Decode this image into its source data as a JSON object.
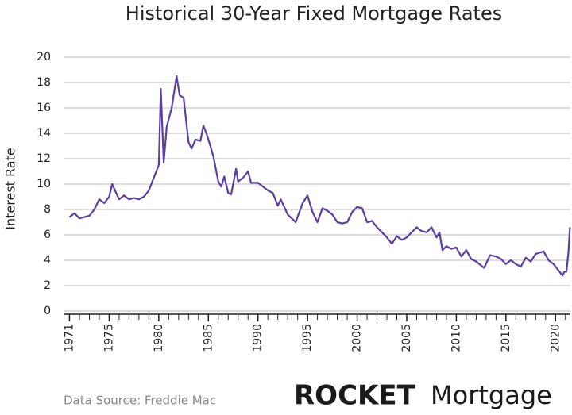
{
  "chart_data": {
    "type": "line",
    "title": "Historical 30-Year Fixed Mortgage Rates",
    "y_label": "Interest Rate",
    "source": "Data Source: Freddie Mac",
    "brand": "ROCKET",
    "brand_suffix": "Mortgage",
    "x": [
      1971,
      1971.5,
      1972,
      1972.5,
      1973,
      1973.5,
      1974,
      1974.5,
      1975,
      1975.3,
      1975.7,
      1976,
      1976.5,
      1977,
      1977.5,
      1978,
      1978.5,
      1979,
      1979.5,
      1980,
      1980.2,
      1980.5,
      1980.8,
      1981.3,
      1981.8,
      1982.1,
      1982.5,
      1983,
      1983.3,
      1983.7,
      1984.2,
      1984.5,
      1984.8,
      1985.2,
      1985.5,
      1986,
      1986.3,
      1986.6,
      1987,
      1987.3,
      1987.8,
      1988,
      1988.5,
      1989,
      1989.3,
      1990,
      1990.5,
      1991,
      1991.5,
      1992,
      1992.3,
      1993,
      1993.8,
      1994.5,
      1995,
      1995.5,
      1996,
      1996.5,
      1997,
      1997.5,
      1998,
      1998.5,
      1999,
      1999.5,
      2000,
      2000.5,
      2001,
      2001.5,
      2002,
      2002.5,
      2003,
      2003.5,
      2004,
      2004.5,
      2005,
      2005.5,
      2006,
      2006.5,
      2007,
      2007.5,
      2008,
      2008.3,
      2008.6,
      2009,
      2009.5,
      2010,
      2010.5,
      2011,
      2011.5,
      2012,
      2012.8,
      2013.4,
      2014,
      2014.5,
      2015,
      2015.5,
      2016,
      2016.5,
      2017,
      2017.5,
      2018,
      2018.8,
      2019.3,
      2019.8,
      2020.3,
      2020.7,
      2020.9,
      2021.1,
      2021.3,
      2021.45
    ],
    "series": [
      {
        "name": "30-Year Fixed",
        "color": "#5b3ea6",
        "values": [
          7.4,
          7.7,
          7.3,
          7.4,
          7.5,
          8.0,
          8.8,
          8.5,
          9.0,
          10.0,
          9.3,
          8.8,
          9.1,
          8.8,
          8.9,
          8.8,
          9.0,
          9.5,
          10.5,
          11.5,
          17.5,
          11.7,
          14.5,
          16.0,
          18.5,
          17.0,
          16.8,
          13.3,
          12.8,
          13.5,
          13.4,
          14.6,
          14.0,
          13.0,
          12.2,
          10.2,
          9.8,
          10.6,
          9.3,
          9.2,
          11.2,
          10.2,
          10.5,
          11.0,
          10.1,
          10.1,
          9.8,
          9.5,
          9.3,
          8.3,
          8.8,
          7.6,
          7.0,
          8.5,
          9.1,
          7.8,
          7.0,
          8.1,
          7.9,
          7.6,
          7.0,
          6.9,
          7.0,
          7.8,
          8.2,
          8.1,
          7.0,
          7.1,
          6.6,
          6.2,
          5.8,
          5.3,
          5.9,
          5.6,
          5.8,
          6.2,
          6.6,
          6.3,
          6.2,
          6.6,
          5.8,
          6.2,
          4.8,
          5.1,
          4.9,
          5.0,
          4.3,
          4.8,
          4.1,
          3.9,
          3.4,
          4.4,
          4.3,
          4.1,
          3.7,
          4.0,
          3.7,
          3.5,
          4.2,
          3.9,
          4.5,
          4.7,
          4.0,
          3.7,
          3.2,
          2.8,
          3.1,
          3.1,
          4.6,
          6.6
        ]
      }
    ],
    "xlim": [
      1970.4,
      2021.5
    ],
    "xticks": [
      1971,
      1975,
      1980,
      1985,
      1990,
      1995,
      2000,
      2005,
      2010,
      2015,
      2020
    ],
    "xminorticks": [
      1971,
      1972,
      1973,
      1974,
      1975,
      1976,
      1977,
      1978,
      1979,
      1980,
      1981,
      1982,
      1983,
      1984,
      1985,
      1986,
      1987,
      1988,
      1989,
      1990,
      1991,
      1992,
      1993,
      1994,
      1995,
      1996,
      1997,
      1998,
      1999,
      2000,
      2001,
      2002,
      2003,
      2004,
      2005,
      2006,
      2007,
      2008,
      2009,
      2010,
      2011,
      2012,
      2013,
      2014,
      2015,
      2016,
      2017,
      2018,
      2019,
      2020,
      2021
    ],
    "ylim": [
      0,
      20
    ],
    "yticks": [
      0,
      2,
      4,
      6,
      8,
      10,
      12,
      14,
      16,
      18,
      20
    ],
    "grid": true
  }
}
